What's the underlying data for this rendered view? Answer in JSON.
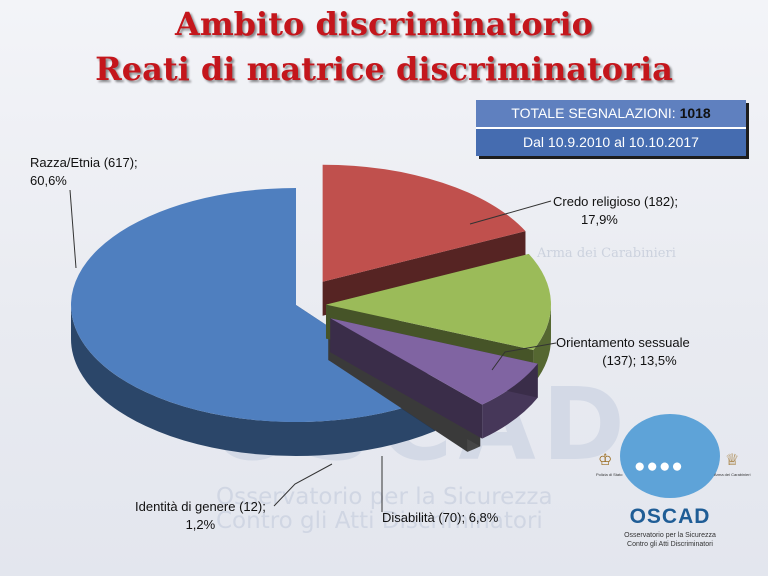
{
  "title_line1": "Ambito discriminatorio",
  "title_line2": "Reati di matrice discriminatoria",
  "totals": {
    "label": "TOTALE SEGNALAZIONI:",
    "value": "1018",
    "period": "Dal 10.9.2010 al 10.10.2017"
  },
  "chart_data": {
    "type": "pie",
    "total": 1018,
    "slices": [
      {
        "label": "Razza/Etnia",
        "value": 617,
        "percent": 60.6,
        "label_line1": "Razza/Etnia (617);",
        "label_line2": "60,6%",
        "color": "#4f7fbf"
      },
      {
        "label": "Credo religioso",
        "value": 182,
        "percent": 17.9,
        "label_line1": "Credo religioso (182);",
        "label_line2": "17,9%",
        "color": "#c0504d"
      },
      {
        "label": "Orientamento sessuale",
        "value": 137,
        "percent": 13.5,
        "label_line1": "Orientamento sessuale",
        "label_line2": "(137); 13,5%",
        "color": "#9bbb59"
      },
      {
        "label": "Disabilità",
        "value": 70,
        "percent": 6.8,
        "label_line1": "Disabilità (70); 6,8%",
        "label_line2": "",
        "color": "#8064a2"
      },
      {
        "label": "Identità di genere",
        "value": 12,
        "percent": 1.2,
        "label_line1": "Identità di genere (12);",
        "label_line2": "1,2%",
        "color": "#808080"
      }
    ]
  },
  "watermark": {
    "oscad": "OSCAD",
    "line1": "Osservatorio per la Sicurezza",
    "line2": "Contro gli Atti Discriminatori",
    "arma": "Arma dei Carabinieri"
  },
  "logo": {
    "brand": "OSCAD",
    "sub1": "Osservatorio per la Sicurezza",
    "sub2": "Contro gli Atti Discriminatori",
    "left_caption": "Polizia di Stato",
    "right_caption": "Arma dei Carabinieri"
  }
}
